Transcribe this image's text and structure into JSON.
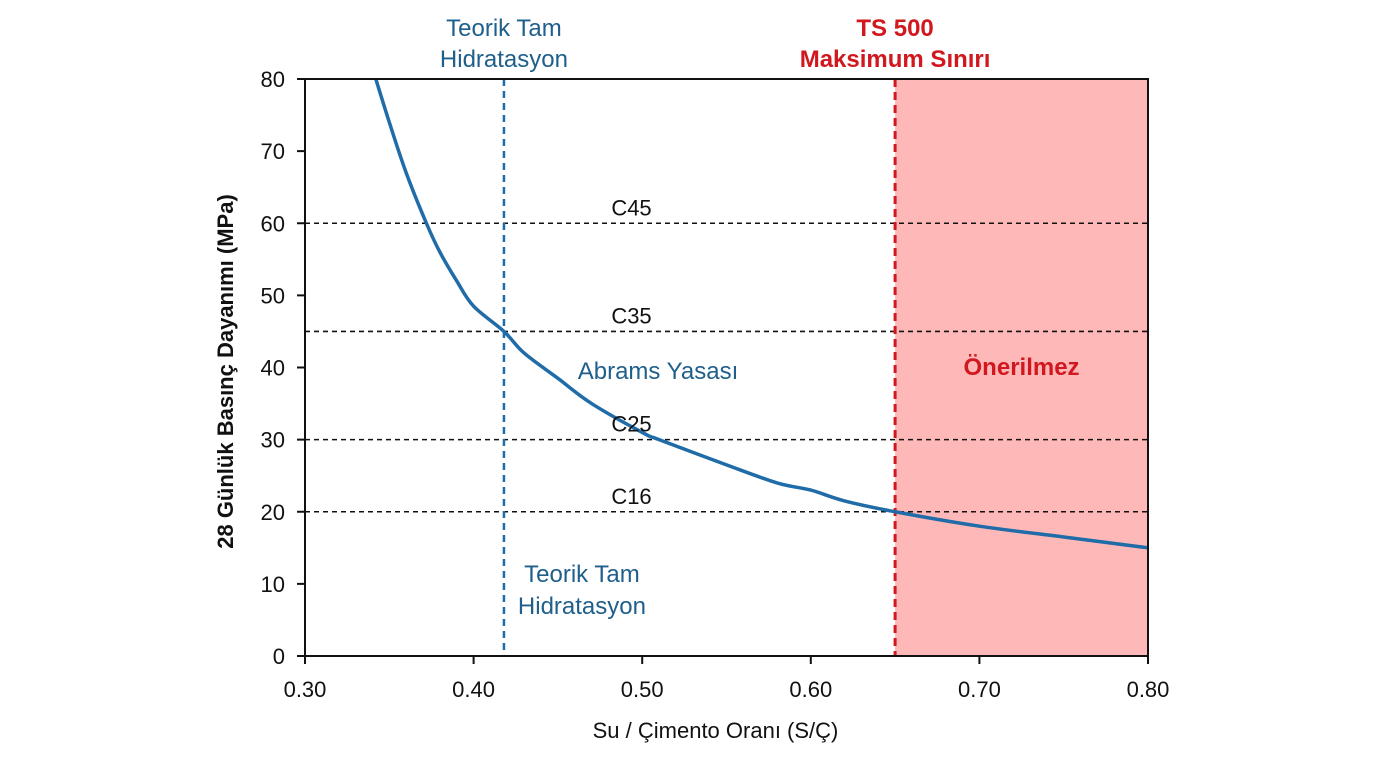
{
  "chart_data": {
    "type": "line",
    "xlabel": "Su / Çimento Oranı (S/Ç)",
    "ylabel": "28 Günlük Basınç Dayanımı (MPa)",
    "xlim": [
      0.3,
      0.8
    ],
    "ylim": [
      0,
      80
    ],
    "xticks": [
      "0.30",
      "0.40",
      "0.50",
      "0.60",
      "0.70",
      "0.80"
    ],
    "yticks": [
      "0",
      "10",
      "20",
      "30",
      "40",
      "50",
      "60",
      "70",
      "80"
    ],
    "grid": false,
    "series": [
      {
        "name": "Abrams Yasası",
        "color": "#1f6ca8",
        "x": [
          0.342,
          0.35,
          0.36,
          0.372,
          0.38,
          0.39,
          0.4,
          0.418,
          0.43,
          0.45,
          0.47,
          0.5,
          0.51,
          0.55,
          0.58,
          0.6,
          0.62,
          0.65,
          0.7,
          0.75,
          0.8
        ],
        "y": [
          80,
          74,
          67,
          60,
          56,
          52,
          48.5,
          45,
          42,
          38.5,
          35,
          31,
          30,
          26.5,
          24,
          23,
          21.5,
          20,
          18,
          16.5,
          15
        ]
      }
    ],
    "reference_lines": [
      {
        "axis": "y",
        "value": 60,
        "label": "C45",
        "color": "#111111"
      },
      {
        "axis": "y",
        "value": 45,
        "label": "C35",
        "color": "#111111"
      },
      {
        "axis": "y",
        "value": 30,
        "label": "C25",
        "color": "#111111"
      },
      {
        "axis": "y",
        "value": 20,
        "label": "C16",
        "color": "#111111"
      },
      {
        "axis": "x",
        "value": 0.418,
        "label_top": [
          "Teorik Tam",
          "Hidratasyon"
        ],
        "label_bottom": [
          "Teorik Tam",
          "Hidratasyon"
        ],
        "color": "#1f6ca8"
      },
      {
        "axis": "x",
        "value": 0.65,
        "label_top": [
          "TS 500",
          "Maksimum Sınırı"
        ],
        "color": "#d0181e"
      }
    ],
    "shaded_region": {
      "x_from": 0.65,
      "x_to": 0.8,
      "label": "Önerilmez",
      "color": "#ffb8b8"
    },
    "annotations": [
      {
        "text": "Abrams Yasası",
        "color": "#1f6ca8"
      }
    ]
  }
}
